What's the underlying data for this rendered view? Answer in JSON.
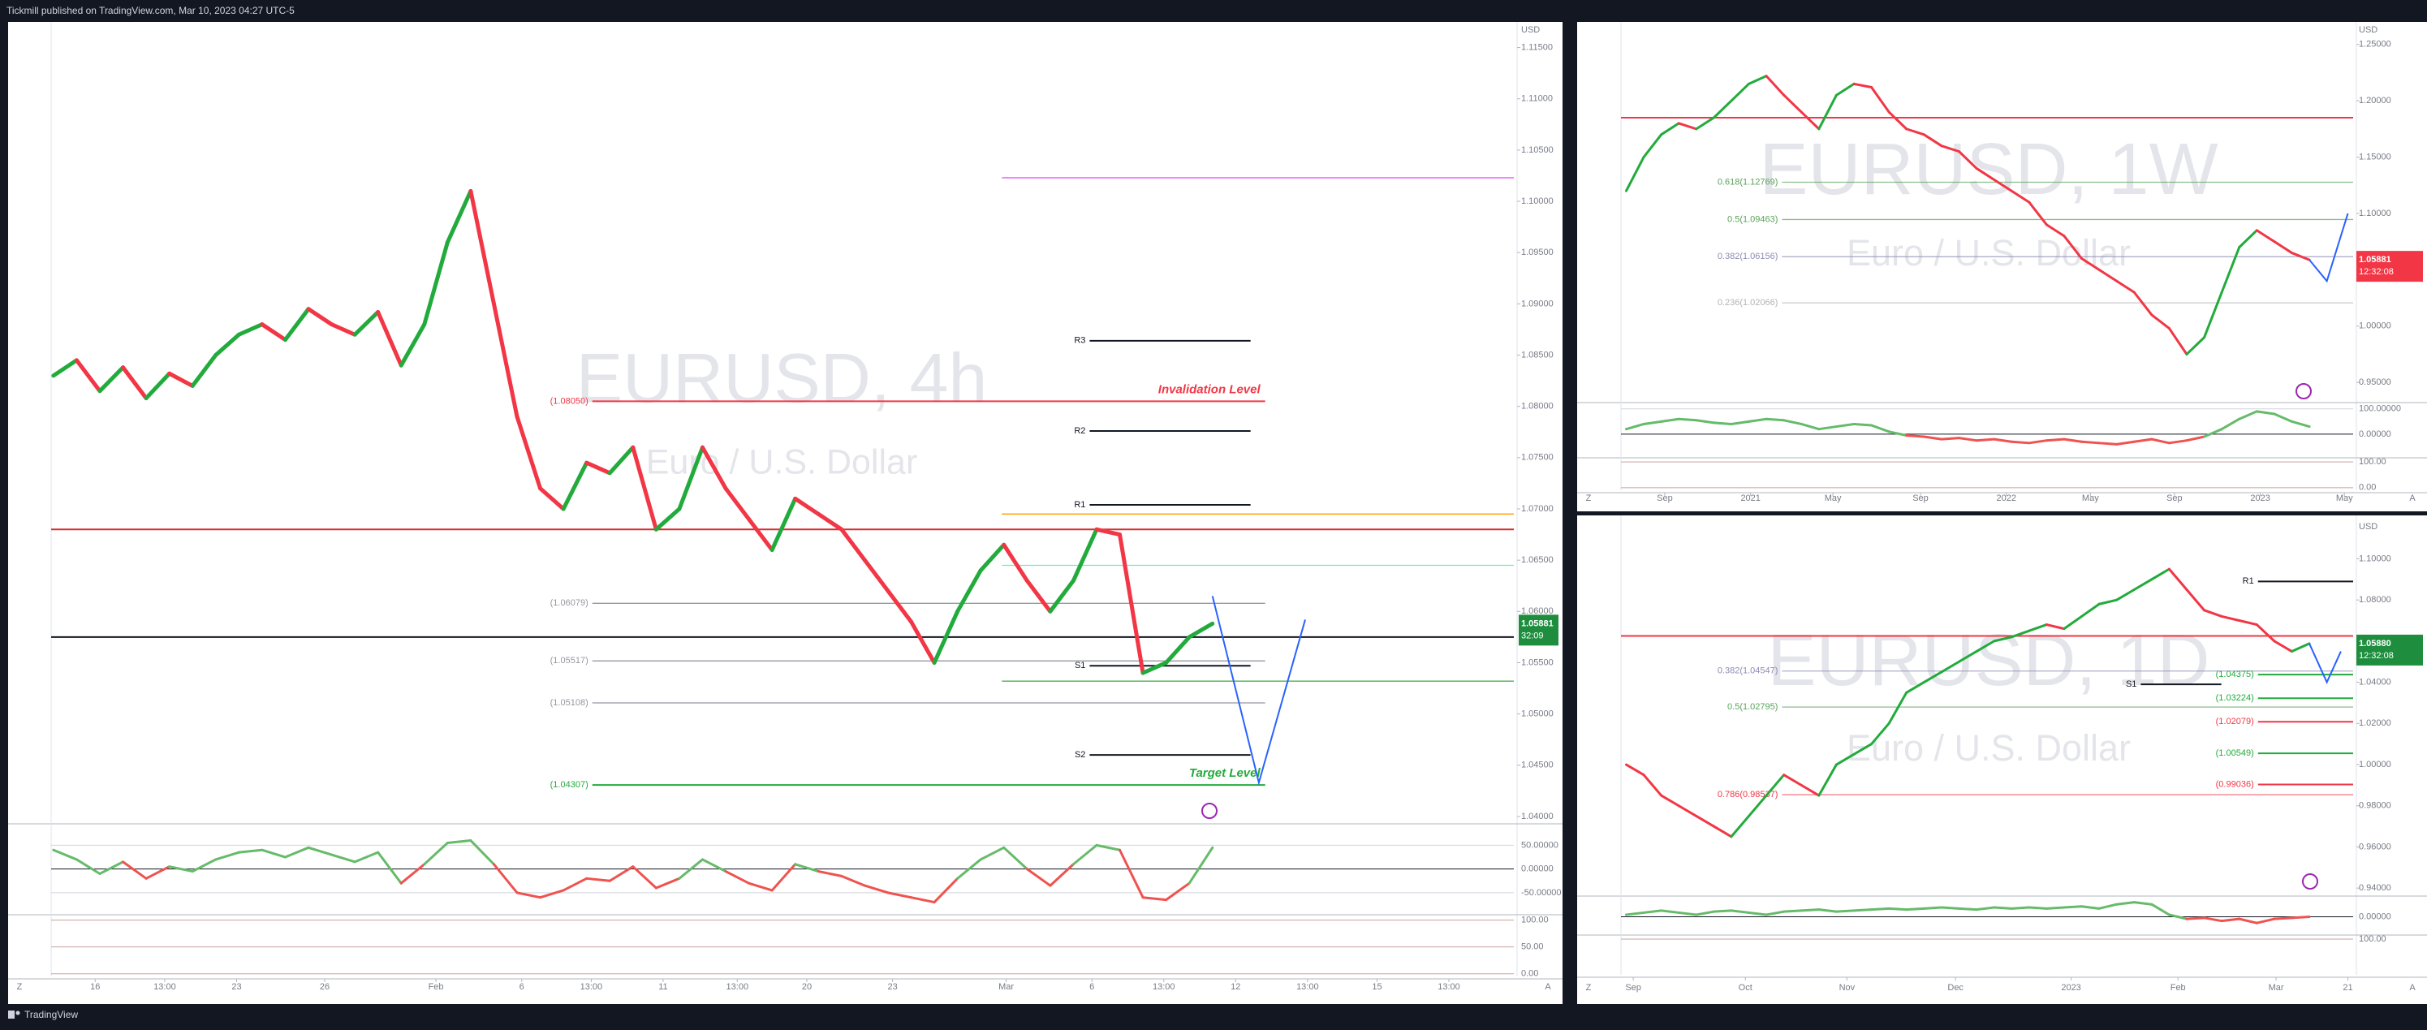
{
  "header": "Tickmill published on TradingView.com, Mar 10, 2023 04:27 UTC-5",
  "footer": "TradingView",
  "buttons": {
    "left": "Z",
    "right": "A"
  },
  "chart_data": [
    {
      "type": "line",
      "title": "EURUSD, 4h",
      "subtitle": "Euro / U.S. Dollar",
      "currency": "USD",
      "up_color": "#22ab3c",
      "down_color": "#f23645",
      "x": [
        0,
        1,
        2,
        3,
        4,
        5,
        6,
        7,
        8,
        9,
        10,
        11,
        12,
        13,
        14,
        15,
        16,
        17,
        18,
        19,
        20,
        21,
        22,
        23,
        24,
        25,
        26,
        27,
        28,
        29,
        30,
        31,
        32,
        33,
        34,
        35,
        36,
        37,
        38,
        39,
        40,
        41,
        42,
        43,
        44,
        45,
        46,
        47,
        48,
        49,
        50
      ],
      "values": [
        1.083,
        1.0845,
        1.0815,
        1.0838,
        1.0808,
        1.0832,
        1.082,
        1.085,
        1.087,
        1.088,
        1.0865,
        1.0895,
        1.088,
        1.087,
        1.0892,
        1.084,
        1.088,
        1.096,
        1.101,
        1.09,
        1.079,
        1.072,
        1.07,
        1.0745,
        1.0735,
        1.076,
        1.068,
        1.07,
        1.076,
        1.072,
        1.069,
        1.066,
        1.071,
        1.0695,
        1.068,
        1.065,
        1.062,
        1.059,
        1.055,
        1.06,
        1.064,
        1.0665,
        1.063,
        1.06,
        1.063,
        1.068,
        1.0675,
        1.054,
        1.055,
        1.0575,
        1.05881
      ],
      "xlim": [
        -0.1,
        63
      ],
      "ylim": [
        1.0396,
        1.1175
      ],
      "xticks": [
        {
          "value": 1.8,
          "label": "16"
        },
        {
          "value": 4.8,
          "label": "13:00"
        },
        {
          "value": 7.9,
          "label": "23"
        },
        {
          "value": 11.7,
          "label": "26"
        },
        {
          "value": 16.5,
          "label": "Feb"
        },
        {
          "value": 20.2,
          "label": "6"
        },
        {
          "value": 23.2,
          "label": "13:00"
        },
        {
          "value": 26.3,
          "label": "11"
        },
        {
          "value": 29.5,
          "label": "13:00"
        },
        {
          "value": 32.5,
          "label": "20"
        },
        {
          "value": 36.2,
          "label": "23"
        },
        {
          "value": 41.1,
          "label": "Mar"
        },
        {
          "value": 44.8,
          "label": "6"
        },
        {
          "value": 47.9,
          "label": "13:00"
        },
        {
          "value": 51,
          "label": "12"
        },
        {
          "value": 54.1,
          "label": "13:00"
        },
        {
          "value": 57.1,
          "label": "15"
        },
        {
          "value": 60.2,
          "label": "13:00"
        }
      ],
      "yticks": [
        {
          "value": 1.04,
          "label": "1.04000"
        },
        {
          "value": 1.045,
          "label": "1.04500"
        },
        {
          "value": 1.05,
          "label": "1.05000"
        },
        {
          "value": 1.055,
          "label": "1.05500"
        },
        {
          "value": 1.06,
          "label": "1.06000"
        },
        {
          "value": 1.065,
          "label": "1.06500"
        },
        {
          "value": 1.07,
          "label": "1.07000"
        },
        {
          "value": 1.075,
          "label": "1.07500"
        },
        {
          "value": 1.08,
          "label": "1.08000"
        },
        {
          "value": 1.085,
          "label": "1.08500"
        },
        {
          "value": 1.09,
          "label": "1.09000"
        },
        {
          "value": 1.095,
          "label": "1.09500"
        },
        {
          "value": 1.1,
          "label": "1.10000"
        },
        {
          "value": 1.105,
          "label": "1.10500"
        },
        {
          "value": 1.11,
          "label": "1.11000"
        },
        {
          "value": 1.115,
          "label": "1.11500"
        }
      ],
      "levels": [
        {
          "value": 1.1023,
          "kind": "right",
          "color": "#e040fb"
        },
        {
          "value": 1.0864,
          "label": "R3",
          "kind": "pivot",
          "color": "#131722"
        },
        {
          "value": 1.0805,
          "label": "(1.08050)",
          "note": "Invalidation Level",
          "kind": "level",
          "color": "#f23645"
        },
        {
          "value": 1.0776,
          "label": "R2",
          "kind": "pivot",
          "color": "#131722"
        },
        {
          "value": 1.0704,
          "label": "R1",
          "kind": "pivot",
          "color": "#131722"
        },
        {
          "value": 1.0695,
          "kind": "right",
          "color": "#ff9800"
        },
        {
          "value": 1.068,
          "kind": "full",
          "color": "#d32f2f"
        },
        {
          "value": 1.0645,
          "kind": "right",
          "color": "#69f0ae"
        },
        {
          "value": 1.06079,
          "label": "(1.06079)",
          "kind": "level",
          "color": "#9598a1"
        },
        {
          "value": 1.0575,
          "kind": "full",
          "color": "#131722"
        },
        {
          "value": 1.05517,
          "label": "(1.05517)",
          "kind": "level",
          "color": "#9598a1"
        },
        {
          "value": 1.0547,
          "label": "S1",
          "kind": "pivot",
          "color": "#131722"
        },
        {
          "value": 1.0532,
          "kind": "right",
          "color": "#4caf50"
        },
        {
          "value": 1.05108,
          "label": "(1.05108)",
          "kind": "level",
          "color": "#9598a1"
        },
        {
          "value": 1.046,
          "label": "S2",
          "kind": "pivot",
          "color": "#131722"
        },
        {
          "value": 1.04307,
          "label": "(1.04307)",
          "note": "Target Level",
          "kind": "level",
          "color": "#22ab3c"
        }
      ],
      "projection": {
        "x": [
          50,
          52,
          54
        ],
        "values": [
          1.0615,
          1.0433,
          1.0592
        ],
        "color": "#2962ff"
      },
      "price_label": {
        "value": 1.05881,
        "countdown": "32:09",
        "color": "#1e8e3e"
      },
      "oscillator": {
        "values": [
          40,
          20,
          -10,
          15,
          -20,
          5,
          -5,
          20,
          35,
          40,
          25,
          45,
          30,
          15,
          35,
          -30,
          10,
          55,
          60,
          10,
          -50,
          -60,
          -45,
          -20,
          -25,
          5,
          -40,
          -20,
          20,
          -5,
          -30,
          -45,
          10,
          -5,
          -15,
          -35,
          -50,
          -60,
          -70,
          -20,
          20,
          45,
          0,
          -35,
          10,
          50,
          40,
          -60,
          -65,
          -30,
          45
        ],
        "ylim": [
          -93,
          90
        ],
        "yticks": [
          {
            "value": 50,
            "label": "50.00000"
          },
          {
            "value": 0,
            "label": "0.00000"
          },
          {
            "value": -50,
            "label": "-50.00000"
          }
        ]
      },
      "stochastic": {
        "ylim": [
          -5,
          107
        ],
        "yticks": [
          {
            "value": 100,
            "label": "100.00"
          },
          {
            "value": 50,
            "label": "50.00"
          },
          {
            "value": 0,
            "label": "0.00"
          }
        ]
      }
    },
    {
      "type": "line",
      "title": "EURUSD, 1W",
      "subtitle": "Euro / U.S. Dollar",
      "currency": "USD",
      "up_color": "#22ab3c",
      "down_color": "#f23645",
      "x": [
        0,
        1,
        2,
        3,
        4,
        5,
        6,
        7,
        8,
        9,
        10,
        11,
        12,
        13,
        14,
        15,
        16,
        17,
        18,
        19,
        20,
        21,
        22,
        23,
        24,
        25,
        26,
        27,
        28,
        29,
        30,
        31,
        32,
        33,
        34,
        35,
        36,
        37,
        38,
        39
      ],
      "values": [
        1.12,
        1.15,
        1.17,
        1.18,
        1.175,
        1.185,
        1.2,
        1.215,
        1.222,
        1.205,
        1.19,
        1.175,
        1.205,
        1.215,
        1.212,
        1.19,
        1.175,
        1.17,
        1.16,
        1.155,
        1.14,
        1.13,
        1.12,
        1.11,
        1.09,
        1.08,
        1.06,
        1.05,
        1.04,
        1.03,
        1.01,
        0.998,
        0.975,
        0.99,
        1.03,
        1.07,
        1.085,
        1.075,
        1.065,
        1.05881
      ],
      "xlim": [
        -0.3,
        41.5
      ],
      "ylim": [
        0.935,
        1.27
      ],
      "xticks": [
        {
          "value": 2.2,
          "label": "Sep"
        },
        {
          "value": 7.1,
          "label": "2021"
        },
        {
          "value": 11.8,
          "label": "May"
        },
        {
          "value": 16.8,
          "label": "Sep"
        },
        {
          "value": 21.7,
          "label": "2022"
        },
        {
          "value": 26.5,
          "label": "May"
        },
        {
          "value": 31.3,
          "label": "Sep"
        },
        {
          "value": 36.2,
          "label": "2023"
        },
        {
          "value": 41,
          "label": "May"
        }
      ],
      "yticks": [
        {
          "value": 0.95,
          "label": "0.95000"
        },
        {
          "value": 1.0,
          "label": "1.00000"
        },
        {
          "value": 1.05,
          "label": "1.05000"
        },
        {
          "value": 1.1,
          "label": "1.10000"
        },
        {
          "value": 1.15,
          "label": "1.15000"
        },
        {
          "value": 1.2,
          "label": "1.20000"
        },
        {
          "value": 1.25,
          "label": "1.25000"
        }
      ],
      "levels": [
        {
          "value": 1.185,
          "kind": "full",
          "color": "#f23645"
        },
        {
          "value": 1.12769,
          "label": "0.618(1.12769)",
          "kind": "fib",
          "color": "#5aa35a"
        },
        {
          "value": 1.09463,
          "label": "0.5(1.09463)",
          "kind": "fib",
          "color": "#5aa35a"
        },
        {
          "value": 1.06156,
          "label": "0.382(1.06156)",
          "kind": "fib",
          "color": "#8c8cb4"
        },
        {
          "value": 1.02066,
          "label": "0.236(1.02066)",
          "kind": "fib",
          "color": "#b4b4b4"
        }
      ],
      "projection": {
        "x": [
          39,
          40,
          41.2
        ],
        "values": [
          1.05881,
          1.04,
          1.1
        ],
        "color": "#2962ff"
      },
      "price_label": {
        "value": 1.05881,
        "countdown": "12:32:08",
        "color": "#f23645"
      },
      "oscillator": {
        "values": [
          20,
          40,
          50,
          60,
          55,
          45,
          40,
          50,
          60,
          55,
          40,
          20,
          30,
          40,
          35,
          10,
          -5,
          -10,
          -20,
          -15,
          -25,
          -20,
          -30,
          -35,
          -25,
          -20,
          -30,
          -35,
          -40,
          -30,
          -20,
          -35,
          -25,
          -10,
          20,
          60,
          90,
          80,
          50,
          30
        ],
        "ylim": [
          -87,
          125
        ],
        "yticks": [
          {
            "value": 100,
            "label": "100.00000"
          },
          {
            "value": 0,
            "label": "0.00000"
          }
        ]
      },
      "stochastic": {
        "ylim": [
          -10,
          110
        ],
        "yticks": [
          {
            "value": 100,
            "label": "100.00"
          },
          {
            "value": 0,
            "label": "0.00"
          }
        ]
      }
    },
    {
      "type": "line",
      "title": "EURUSD, 1D",
      "subtitle": "Euro / U.S. Dollar",
      "currency": "USD",
      "up_color": "#22ab3c",
      "down_color": "#f23645",
      "x": [
        0,
        1,
        2,
        3,
        4,
        5,
        6,
        7,
        8,
        9,
        10,
        11,
        12,
        13,
        14,
        15,
        16,
        17,
        18,
        19,
        20,
        21,
        22,
        23,
        24,
        25,
        26,
        27,
        28,
        29,
        30,
        31,
        32,
        33,
        34,
        35,
        36,
        37,
        38,
        39
      ],
      "values": [
        1.0,
        0.995,
        0.985,
        0.98,
        0.975,
        0.97,
        0.965,
        0.975,
        0.985,
        0.995,
        0.99,
        0.985,
        1.0,
        1.005,
        1.01,
        1.02,
        1.035,
        1.04,
        1.045,
        1.05,
        1.055,
        1.06,
        1.062,
        1.065,
        1.068,
        1.066,
        1.072,
        1.078,
        1.08,
        1.085,
        1.09,
        1.095,
        1.085,
        1.075,
        1.072,
        1.07,
        1.068,
        1.06,
        1.055,
        1.0588
      ],
      "xlim": [
        -0.3,
        41.5
      ],
      "ylim": [
        0.9377,
        1.1195
      ],
      "xticks": [
        {
          "value": 0.4,
          "label": "Sep"
        },
        {
          "value": 6.8,
          "label": "Oct"
        },
        {
          "value": 12.6,
          "label": "Nov"
        },
        {
          "value": 18.8,
          "label": "Dec"
        },
        {
          "value": 25.4,
          "label": "2023"
        },
        {
          "value": 31.5,
          "label": "Feb"
        },
        {
          "value": 37.1,
          "label": "Mar"
        },
        {
          "value": 41.2,
          "label": "21"
        }
      ],
      "yticks": [
        {
          "value": 0.94,
          "label": "0.94000"
        },
        {
          "value": 0.96,
          "label": "0.96000"
        },
        {
          "value": 0.98,
          "label": "0.98000"
        },
        {
          "value": 1.0,
          "label": "1.00000"
        },
        {
          "value": 1.02,
          "label": "1.02000"
        },
        {
          "value": 1.04,
          "label": "1.04000"
        },
        {
          "value": 1.06,
          "label": "1.06000"
        },
        {
          "value": 1.08,
          "label": "1.08000"
        },
        {
          "value": 1.1,
          "label": "1.10000"
        }
      ],
      "levels": [
        {
          "value": 1.089,
          "label": "R1",
          "kind": "tag",
          "color": "#131722"
        },
        {
          "value": 1.0625,
          "kind": "full",
          "color": "#f23645"
        },
        {
          "value": 1.04547,
          "label": "0.382(1.04547)",
          "kind": "fib",
          "color": "#8c8cb4"
        },
        {
          "value": 1.04375,
          "label": "(1.04375)",
          "kind": "tag",
          "color": "#22ab3c"
        },
        {
          "value": 1.039,
          "label": "S1",
          "kind": "pivot",
          "color": "#131722"
        },
        {
          "value": 1.03224,
          "label": "(1.03224)",
          "kind": "tag",
          "color": "#22ab3c"
        },
        {
          "value": 1.02795,
          "label": "0.5(1.02795)",
          "kind": "fib",
          "color": "#5aa35a"
        },
        {
          "value": 1.02079,
          "label": "(1.02079)",
          "kind": "tag",
          "color": "#f23645"
        },
        {
          "value": 1.00549,
          "label": "(1.00549)",
          "kind": "tag",
          "color": "#22ab3c"
        },
        {
          "value": 0.99036,
          "label": "(0.99036)",
          "kind": "tag",
          "color": "#f23645"
        },
        {
          "value": 0.98537,
          "label": "0.786(0.98537)",
          "kind": "fib",
          "color": "#f23645"
        }
      ],
      "projection": {
        "x": [
          39,
          40,
          40.8
        ],
        "values": [
          1.0588,
          1.04,
          1.055
        ],
        "color": "#2962ff"
      },
      "price_label": {
        "value": 1.0588,
        "label": "1.05880",
        "countdown": "12:32:08",
        "color": "#1e8e3e"
      },
      "oscillator": {
        "values": [
          10,
          20,
          30,
          20,
          10,
          25,
          30,
          20,
          10,
          25,
          30,
          35,
          25,
          30,
          35,
          40,
          35,
          40,
          45,
          40,
          35,
          45,
          40,
          45,
          40,
          45,
          50,
          40,
          60,
          70,
          60,
          10,
          -10,
          -5,
          -20,
          -10,
          -30,
          -10,
          -5,
          0
        ],
        "ylim": [
          -80,
          100
        ],
        "yticks": [
          {
            "value": 0,
            "label": "0.00000"
          }
        ]
      },
      "stochastic": {
        "ylim": [
          -10,
          110
        ],
        "yticks": [
          {
            "value": 100,
            "label": "100.00"
          }
        ]
      }
    }
  ]
}
